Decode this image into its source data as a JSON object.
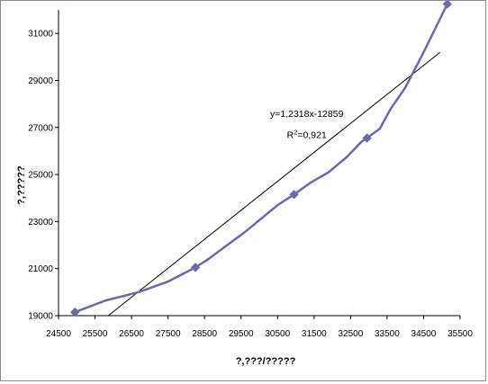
{
  "chart_data": {
    "type": "line",
    "title": "",
    "xlabel": "?,???/?????",
    "ylabel": "?,?????",
    "xlim": [
      24500,
      35500
    ],
    "ylim": [
      19000,
      32000
    ],
    "x_ticks": [
      "24500",
      "25500",
      "26500",
      "27500",
      "28500",
      "29500",
      "30500",
      "31500",
      "32500",
      "33500",
      "34500",
      "35500"
    ],
    "y_ticks": [
      "19000",
      "21000",
      "23000",
      "25000",
      "27000",
      "29000",
      "31000"
    ],
    "grid": false,
    "legend": "none",
    "series": [
      {
        "color": "#6a6aa8",
        "marker": "diamond",
        "x": [
          24950,
          25800,
          26700,
          27500,
          28250,
          28600,
          29600,
          30500,
          30950,
          31400,
          31900,
          32400,
          32800,
          32950,
          33300,
          33600,
          34000,
          34500,
          35150
        ],
        "y": [
          19150,
          19650,
          20000,
          20450,
          21050,
          21400,
          22550,
          23700,
          24150,
          24650,
          25100,
          25750,
          26400,
          26550,
          26950,
          27800,
          28700,
          30200,
          32250
        ],
        "marker_points": [
          [
            24950,
            19150
          ],
          [
            28250,
            21050
          ],
          [
            30950,
            24150
          ],
          [
            32950,
            26550
          ],
          [
            35150,
            32250
          ]
        ]
      }
    ],
    "trendline": {
      "type": "linear",
      "slope": 1.2318,
      "intercept": -12859,
      "color": "#000000",
      "x_range": [
        25800,
        34950
      ]
    },
    "annotations": [
      {
        "text": "y=1,2318x-12859",
        "at": [
          31300,
          27450
        ]
      },
      {
        "text_prefix": "R",
        "sup": "2",
        "text_suffix": "=0,921",
        "at": [
          31300,
          26550
        ]
      }
    ]
  }
}
